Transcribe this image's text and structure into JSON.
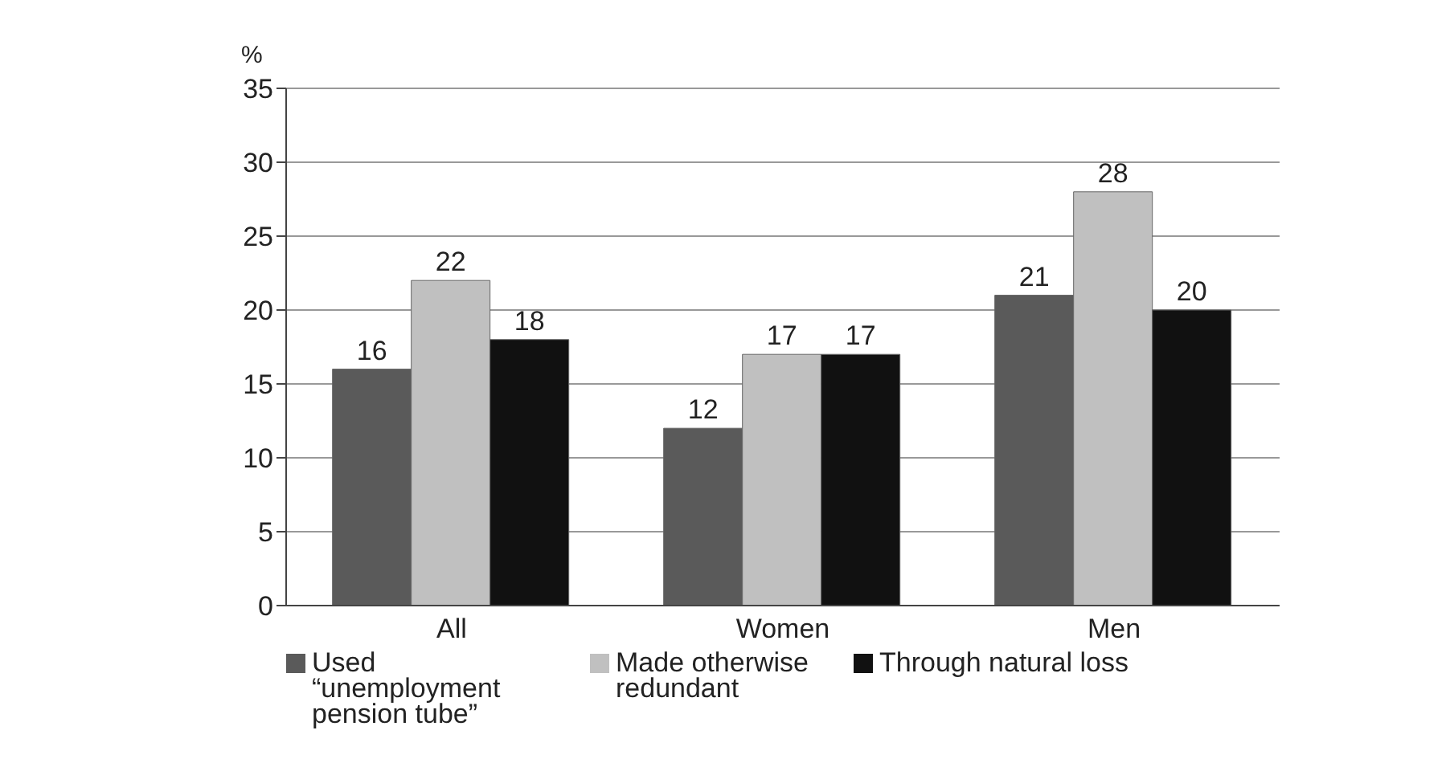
{
  "chart_data": {
    "type": "bar",
    "ylabel": "%",
    "categories": [
      "All",
      "Women",
      "Men"
    ],
    "series": [
      {
        "name": "Used “unemployment pension tube”",
        "color": "#5a5a5a",
        "values": [
          16,
          12,
          21
        ]
      },
      {
        "name": "Made otherwise redundant",
        "color": "#c0c0c0",
        "values": [
          22,
          17,
          28
        ]
      },
      {
        "name": "Through natural loss",
        "color": "#111111",
        "values": [
          18,
          17,
          20
        ]
      }
    ],
    "ylim": [
      0,
      35
    ],
    "yticks": [
      0,
      5,
      10,
      15,
      20,
      25,
      30,
      35
    ],
    "grid": "y",
    "legend": "bottom",
    "data_labels": true
  }
}
